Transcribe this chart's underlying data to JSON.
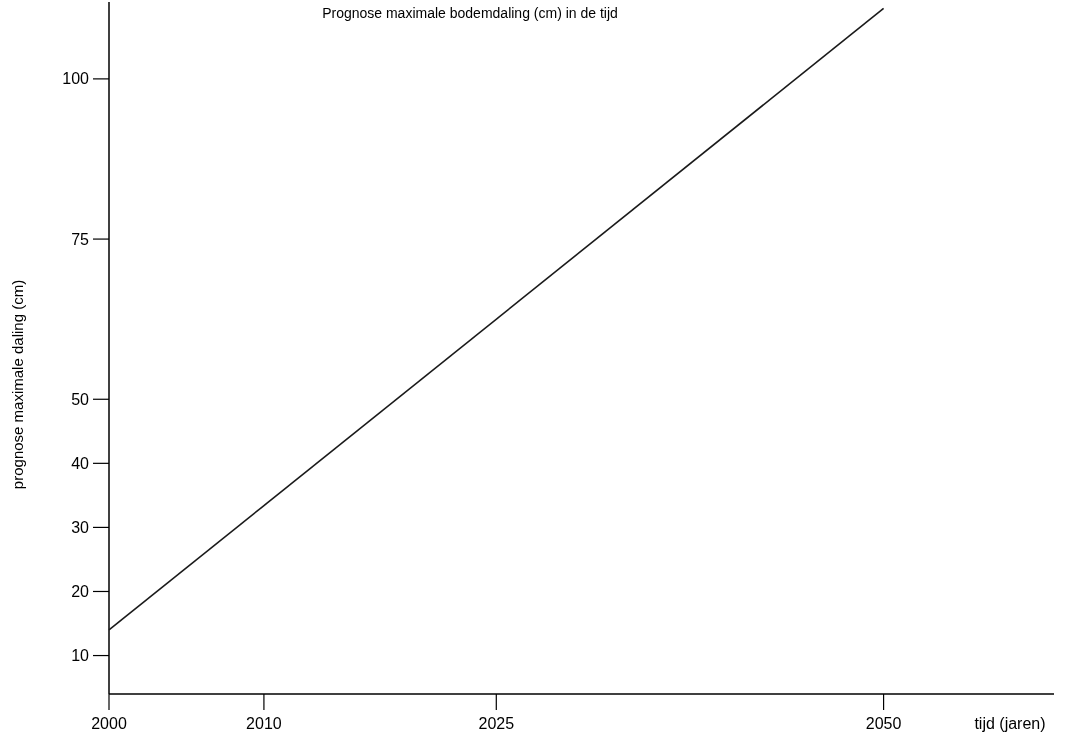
{
  "chart_data": {
    "type": "line",
    "title": "Prognose maximale bodemdaling (cm) in de tijd",
    "xlabel": "tijd (jaren)",
    "ylabel": "prognose maximale daling (cm)",
    "series": [
      {
        "color": "#1a1a1a",
        "x": [
          2000,
          2050
        ],
        "values": [
          14,
          111
        ]
      }
    ],
    "xlim": [
      2000,
      2061
    ],
    "xticks": [
      2000,
      2010,
      2025,
      2050
    ],
    "ylim": [
      4,
      112
    ],
    "yticks": [
      10,
      20,
      30,
      40,
      50,
      75,
      100
    ],
    "grid": false,
    "marker": "none",
    "line_style": "solid"
  }
}
